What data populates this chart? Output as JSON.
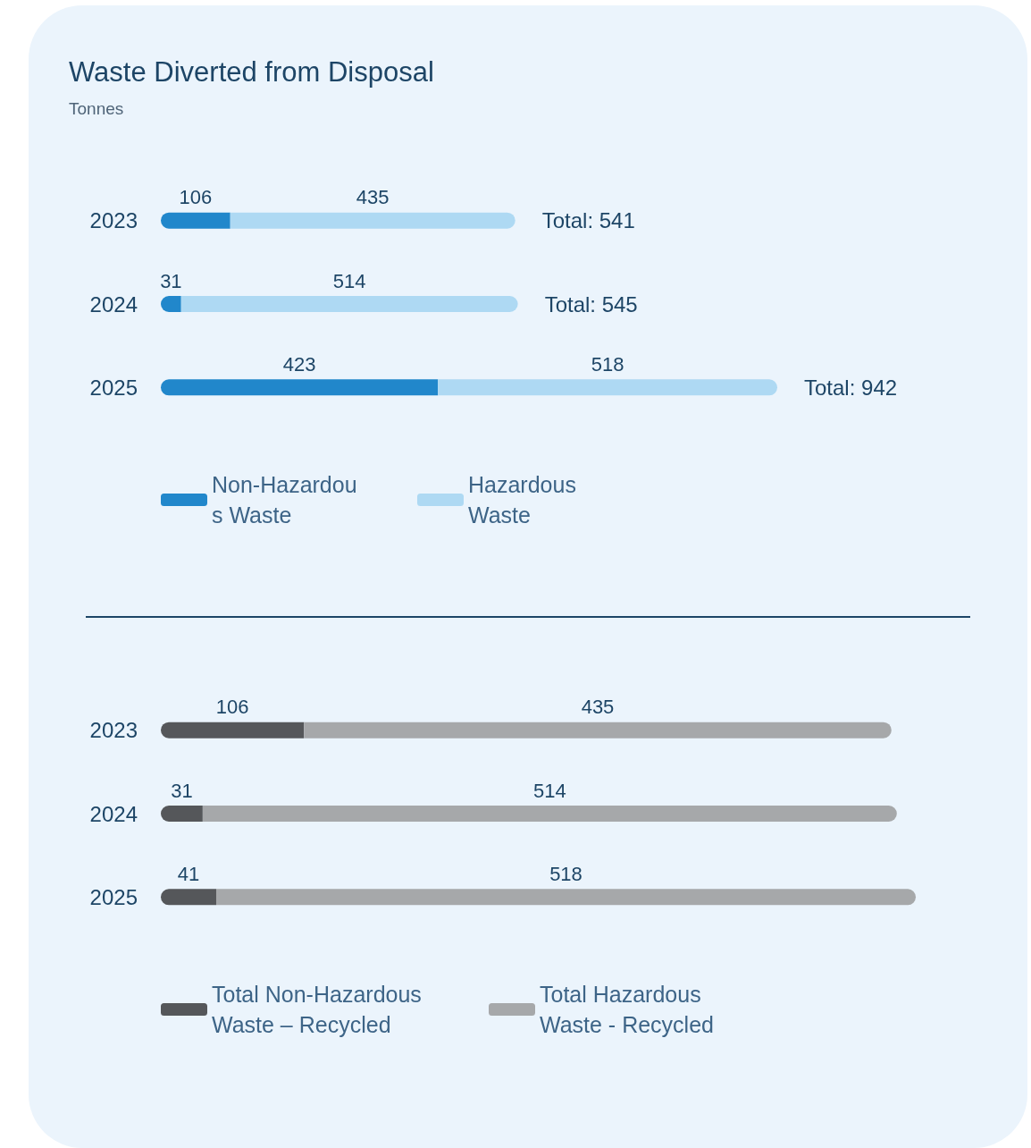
{
  "chart_data": [
    {
      "type": "bar",
      "title": "Waste Diverted from Disposal",
      "subtitle": "Tonnes",
      "orientation": "horizontal",
      "stacked": true,
      "categories": [
        "2023",
        "2024",
        "2025"
      ],
      "series": [
        {
          "name": "Non-Hazardous Waste",
          "color": "#2187cb",
          "values": [
            106,
            31,
            423
          ]
        },
        {
          "name": "Hazardous Waste",
          "color": "#aed9f3",
          "values": [
            435,
            514,
            518
          ]
        }
      ],
      "totals": [
        "Total: 541",
        "Total: 545",
        "Total: 942"
      ],
      "data_labels": true,
      "legend": "bottom left"
    },
    {
      "type": "bar",
      "orientation": "horizontal",
      "stacked": true,
      "categories": [
        "2023",
        "2024",
        "2025"
      ],
      "series": [
        {
          "name": "Total Non-Hazardous Waste – Recycled",
          "color": "#55575a",
          "values": [
            106,
            31,
            41
          ]
        },
        {
          "name": "Total Hazardous Waste - Recycled",
          "color": "#a6a8aa",
          "values": [
            435,
            514,
            518
          ]
        }
      ],
      "data_labels": true,
      "legend": "bottom left"
    }
  ]
}
